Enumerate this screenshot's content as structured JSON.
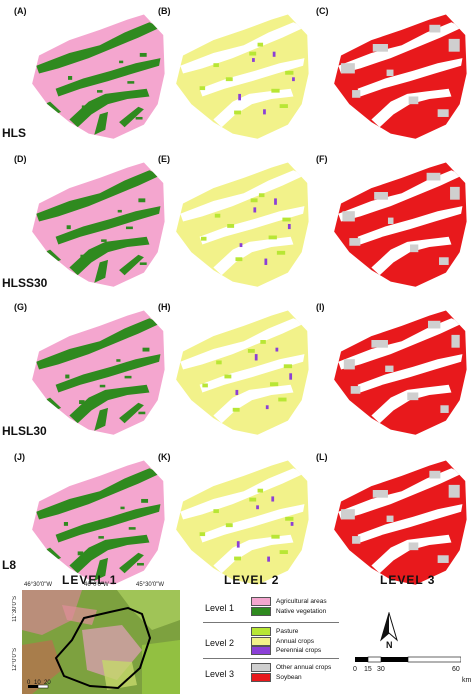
{
  "panels": [
    {
      "letter": "(A)",
      "level": 1
    },
    {
      "letter": "(B)",
      "level": 2
    },
    {
      "letter": "(C)",
      "level": 3
    },
    {
      "letter": "(D)",
      "level": 1
    },
    {
      "letter": "(E)",
      "level": 2
    },
    {
      "letter": "(F)",
      "level": 3
    },
    {
      "letter": "(G)",
      "level": 1
    },
    {
      "letter": "(H)",
      "level": 2
    },
    {
      "letter": "(I)",
      "level": 3
    },
    {
      "letter": "(J)",
      "level": 1
    },
    {
      "letter": "(K)",
      "level": 2
    },
    {
      "letter": "(L)",
      "level": 3
    }
  ],
  "row_labels": [
    "HLS",
    "HLSS30",
    "HLSL30",
    "L8"
  ],
  "level_labels": [
    "LEVEL 1",
    "LEVEL 2",
    "LEVEL 3"
  ],
  "colors": {
    "agricultural_areas": "#f4a6cf",
    "native_vegetation": "#2f8a1f",
    "pasture": "#b8e635",
    "annual_crops": "#f2f28a",
    "perennial_crops": "#8b3fd6",
    "other_annual_crops": "#cfcfcf",
    "soybean": "#e8191c"
  },
  "locator": {
    "lon_labels": [
      "46°30'0\"W",
      "46°0'0\"W",
      "45°30'0\"W"
    ],
    "lat_labels": [
      "11°30'0\"S",
      "12°0'0\"S"
    ],
    "scale_labels": [
      "0",
      "10",
      "20"
    ]
  },
  "legend": {
    "groups": [
      {
        "title": "Level 1",
        "items": [
          {
            "label": "Agricultural areas",
            "color_key": "agricultural_areas"
          },
          {
            "label": "Native vegetation",
            "color_key": "native_vegetation"
          }
        ]
      },
      {
        "title": "Level 2",
        "items": [
          {
            "label": "Pasture",
            "color_key": "pasture"
          },
          {
            "label": "Annual crops",
            "color_key": "annual_crops"
          },
          {
            "label": "Perennial crops",
            "color_key": "perennial_crops"
          }
        ]
      },
      {
        "title": "Level 3",
        "items": [
          {
            "label": "Other annual crops",
            "color_key": "other_annual_crops"
          },
          {
            "label": "Soybean",
            "color_key": "soybean"
          }
        ]
      }
    ]
  },
  "north": {
    "label": "N"
  },
  "scale": {
    "ticks": [
      "0",
      "15",
      "30",
      "60"
    ],
    "unit": "km"
  }
}
